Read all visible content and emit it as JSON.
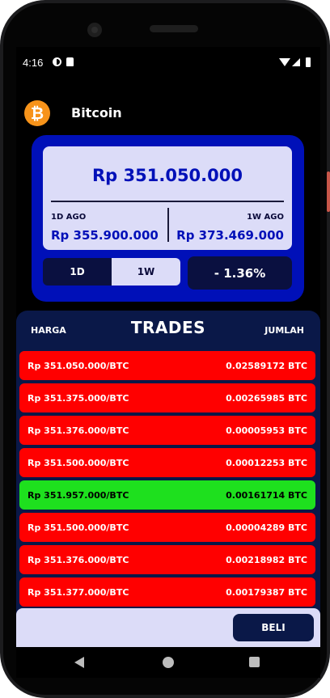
{
  "status": {
    "time": "4:16"
  },
  "header": {
    "coin_name": "Bitcoin",
    "logo_symbol": "₿",
    "logo_color": "#f7931a"
  },
  "price": {
    "current": "Rp 351.050.000",
    "left_label": "1D AGO",
    "left_value": "Rp 355.900.000",
    "right_label": "1W AGO",
    "right_value": "Rp 373.469.000",
    "change": "- 1.36%"
  },
  "range_tabs": {
    "tab_1d": "1D",
    "tab_1w": "1W",
    "selected": "1W"
  },
  "trades": {
    "title": "TRADES",
    "col_price": "HARGA",
    "col_amount": "JUMLAH",
    "rows": [
      {
        "price": "Rp 351.050.000/BTC",
        "amount": "0.02589172 BTC",
        "side": "sell"
      },
      {
        "price": "Rp 351.375.000/BTC",
        "amount": "0.00265985 BTC",
        "side": "sell"
      },
      {
        "price": "Rp 351.376.000/BTC",
        "amount": "0.00005953 BTC",
        "side": "sell"
      },
      {
        "price": "Rp 351.500.000/BTC",
        "amount": "0.00012253 BTC",
        "side": "sell"
      },
      {
        "price": "Rp 351.957.000/BTC",
        "amount": "0.00161714 BTC",
        "side": "buy"
      },
      {
        "price": "Rp 351.500.000/BTC",
        "amount": "0.00004289 BTC",
        "side": "sell"
      },
      {
        "price": "Rp 351.376.000/BTC",
        "amount": "0.00218982 BTC",
        "side": "sell"
      },
      {
        "price": "Rp 351.377.000/BTC",
        "amount": "0.00179387 BTC",
        "side": "sell"
      }
    ]
  },
  "actions": {
    "buy_label": "BELI"
  },
  "colors": {
    "panel_blue": "#0010b8",
    "navy": "#0a1848",
    "sell_red": "#ff0000",
    "buy_green": "#1ee01e",
    "card_lavender": "#dcdcf8"
  }
}
